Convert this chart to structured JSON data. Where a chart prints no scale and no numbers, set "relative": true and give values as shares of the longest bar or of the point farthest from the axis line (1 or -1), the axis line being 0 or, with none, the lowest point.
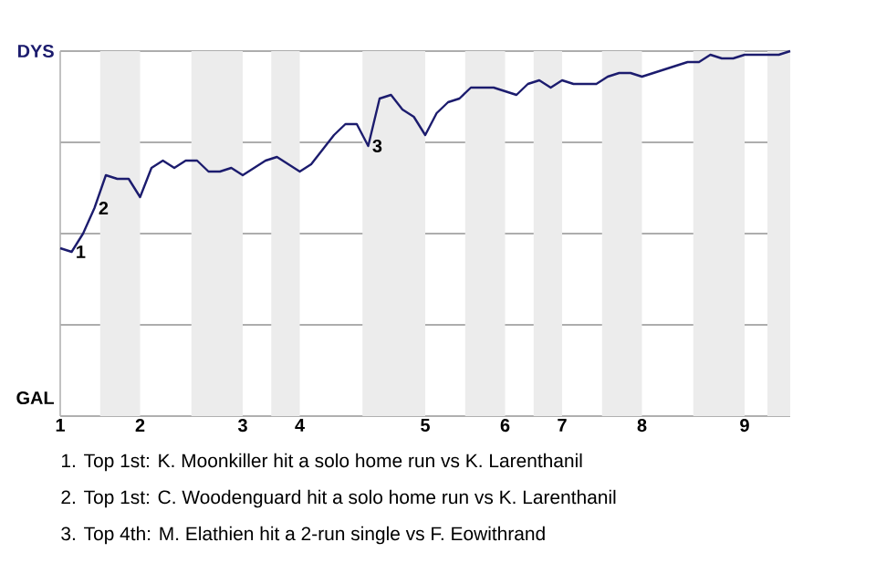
{
  "chart_data": {
    "type": "line",
    "relative": true,
    "categories": [
      "1",
      null,
      null,
      null,
      null,
      null,
      null,
      "2",
      null,
      null,
      null,
      null,
      null,
      null,
      null,
      null,
      "3",
      null,
      null,
      null,
      null,
      "4",
      null,
      null,
      null,
      null,
      null,
      null,
      null,
      null,
      null,
      null,
      "5",
      null,
      null,
      null,
      null,
      null,
      null,
      "6",
      null,
      null,
      null,
      null,
      "7",
      null,
      null,
      null,
      null,
      null,
      null,
      "8",
      null,
      null,
      null,
      null,
      null,
      null,
      null,
      null,
      "9",
      null,
      null,
      null,
      null
    ],
    "series": [
      {
        "color": "#1c1c6e",
        "values": [
          0.46,
          0.45,
          0.5,
          0.57,
          0.66,
          0.65,
          0.65,
          0.6,
          0.68,
          0.7,
          0.68,
          0.7,
          0.7,
          0.67,
          0.67,
          0.68,
          0.66,
          0.68,
          0.7,
          0.71,
          0.69,
          0.67,
          0.69,
          0.73,
          0.77,
          0.8,
          0.8,
          0.74,
          0.87,
          0.88,
          0.84,
          0.82,
          0.77,
          0.83,
          0.86,
          0.87,
          0.9,
          0.9,
          0.9,
          0.89,
          0.88,
          0.91,
          0.92,
          0.9,
          0.92,
          0.91,
          0.91,
          0.91,
          0.93,
          0.94,
          0.94,
          0.93,
          0.94,
          0.95,
          0.96,
          0.97,
          0.97,
          0.99,
          0.98,
          0.98,
          0.99,
          0.99,
          0.99,
          0.99,
          1
        ]
      }
    ],
    "grid": "y",
    "marker": "none",
    "line_style": "solid",
    "annotations": [
      {
        "text": "1",
        "y": 0.45
      },
      {
        "text": "2",
        "y": 0.57
      },
      {
        "text": "3",
        "y": 0.74
      },
      "DYS",
      "GAL",
      "1. Top 1st: K. Moonkiller hit a solo home run vs K. Larenthanil",
      "2. Top 1st: C. Woodenguard hit a solo home run vs K. Larenthanil",
      "3. Top 4th: M. Elathien hit a 2-run single vs F. Eowithrand"
    ]
  }
}
